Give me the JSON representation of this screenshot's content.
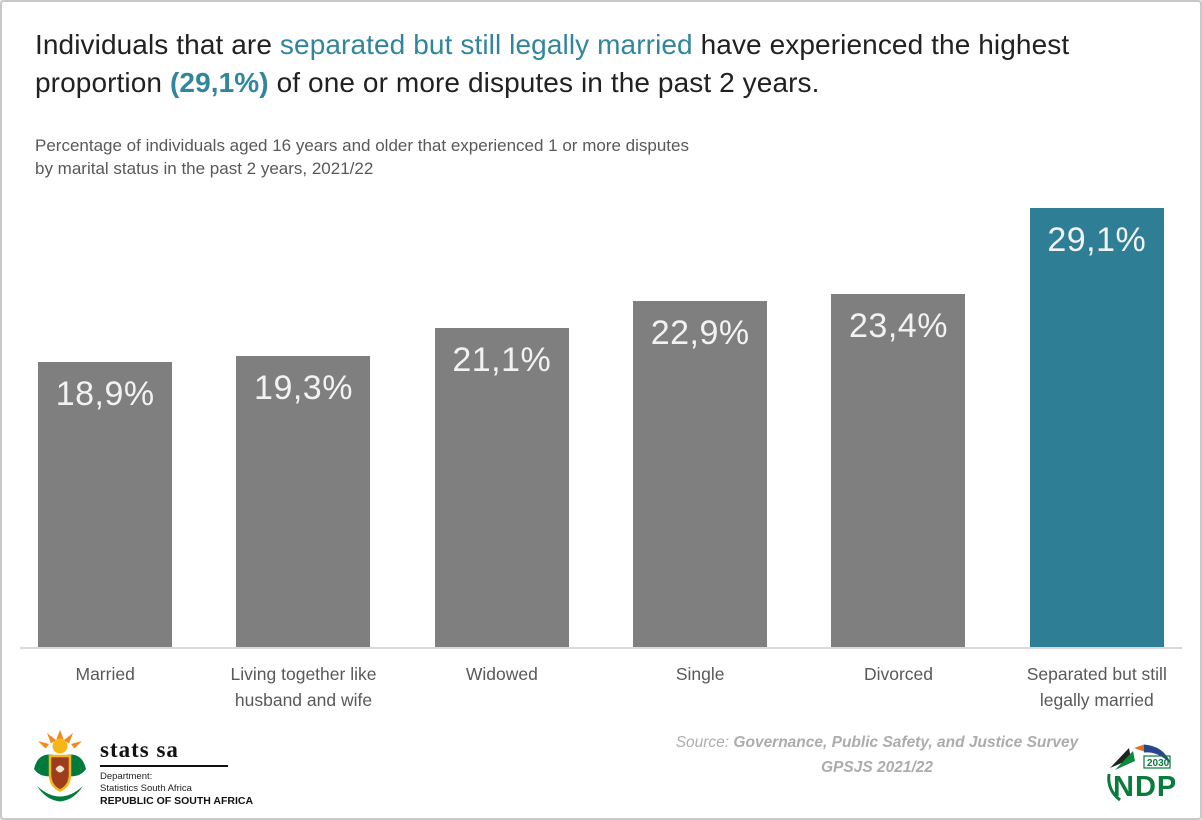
{
  "title": {
    "part1": "Individuals that are ",
    "part2": "separated but still legally married",
    "part3": " have experienced the highest proportion ",
    "part4": "(29,1%)",
    "part5": " of  one or more disputes in the past 2 years."
  },
  "subtitle": {
    "line1": "Percentage of individuals aged 16 years and older that experienced 1 or more disputes",
    "line2": "by marital status in the past 2 years, 2021/22"
  },
  "chart_data": {
    "type": "bar",
    "title": "Percentage of individuals aged 16 years and older that experienced 1 or more disputes by marital status in the past 2 years, 2021/22",
    "categories": [
      "Married",
      "Living together like husband and wife",
      "Widowed",
      "Single",
      "Divorced",
      "Separated but still legally married"
    ],
    "values": [
      18.9,
      19.3,
      21.1,
      22.9,
      23.4,
      29.1
    ],
    "value_labels": [
      "18,9%",
      "19,3%",
      "21,1%",
      "22,9%",
      "23,4%",
      "29,1%"
    ],
    "highlight_index": 5,
    "bar_color": "#7F7F7F",
    "highlight_color": "#2E7E95",
    "value_label_color": "#F2F2F2",
    "xlabel": "",
    "ylabel": "",
    "ylim": [
      0,
      30
    ],
    "grid": false,
    "legend": "none",
    "data_labels": "inside-top"
  },
  "footer": {
    "statssa": {
      "brand": "stats sa",
      "dept_label": "Department:",
      "dept_name": "Statistics South Africa",
      "country": "REPUBLIC OF SOUTH AFRICA"
    },
    "source": {
      "prefix": "Source:",
      "line1": "Governance, Public Safety, and Justice Survey",
      "line2": "GPSJS 2021/22"
    },
    "ndp": {
      "label": "NDP",
      "year": "2030"
    }
  },
  "colors": {
    "accent_teal": "#31859C",
    "highlight_bar": "#2E7E95",
    "bar_gray": "#7F7F7F",
    "text_dark": "#212121",
    "text_gray": "#595959",
    "source_gray": "#ACACAC",
    "axis_gray": "#D9D9D9"
  }
}
